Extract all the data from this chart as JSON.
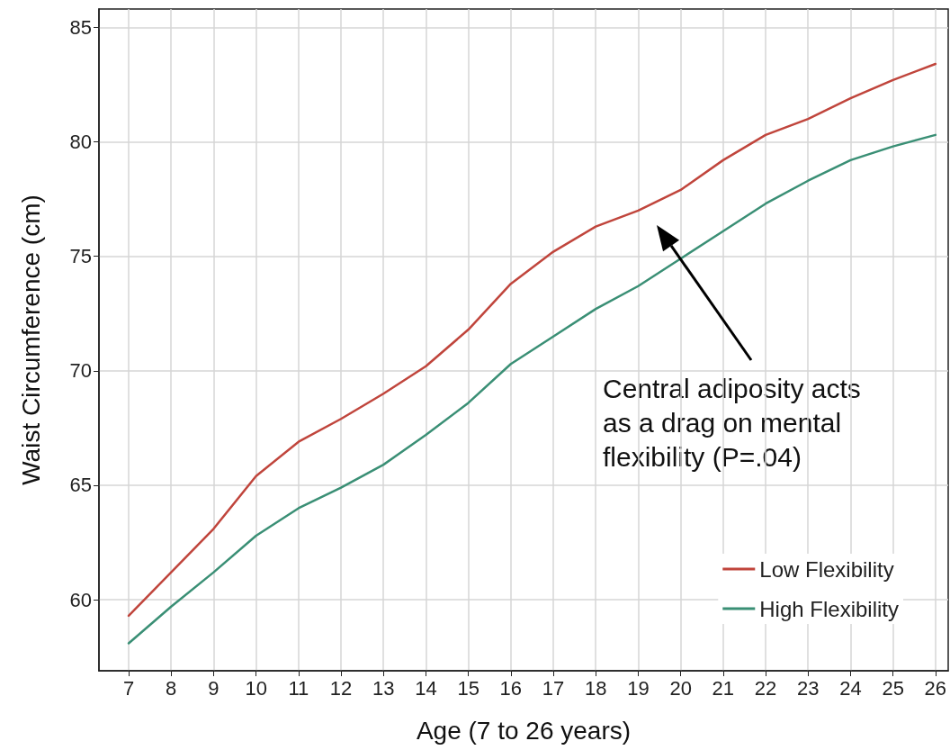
{
  "chart_data": {
    "type": "line",
    "xlabel": "Age (7 to 26 years)",
    "ylabel": "Waist Circumference (cm)",
    "x": [
      7,
      8,
      9,
      10,
      11,
      12,
      13,
      14,
      15,
      16,
      17,
      18,
      19,
      20,
      21,
      22,
      23,
      24,
      25,
      26
    ],
    "series": [
      {
        "name": "Low Flexibility",
        "color": "#c0453c",
        "values": [
          59.3,
          61.2,
          63.1,
          65.4,
          66.9,
          67.9,
          69.0,
          70.2,
          71.8,
          73.8,
          75.2,
          76.3,
          77.0,
          77.9,
          79.2,
          80.3,
          81.0,
          81.9,
          82.7,
          83.4
        ]
      },
      {
        "name": "High Flexibility",
        "color": "#3a8f75",
        "values": [
          58.1,
          59.7,
          61.2,
          62.8,
          64.0,
          64.9,
          65.9,
          67.2,
          68.6,
          70.3,
          71.5,
          72.7,
          73.7,
          74.9,
          76.1,
          77.3,
          78.3,
          79.2,
          79.8,
          80.3
        ]
      }
    ],
    "xlim": [
      6.3,
      26.3
    ],
    "xticks": [
      7,
      8,
      9,
      10,
      11,
      12,
      13,
      14,
      15,
      16,
      17,
      18,
      19,
      20,
      21,
      22,
      23,
      24,
      25,
      26
    ],
    "ylim": [
      56.9,
      85.8
    ],
    "yticks": [
      60,
      65,
      70,
      75,
      80,
      85
    ],
    "annotations": [
      "Central adiposity acts as a drag on mental flexibility (P=.04)"
    ],
    "grid": true,
    "legend": "bottom right",
    "marker": "none",
    "line_style": "solid"
  }
}
